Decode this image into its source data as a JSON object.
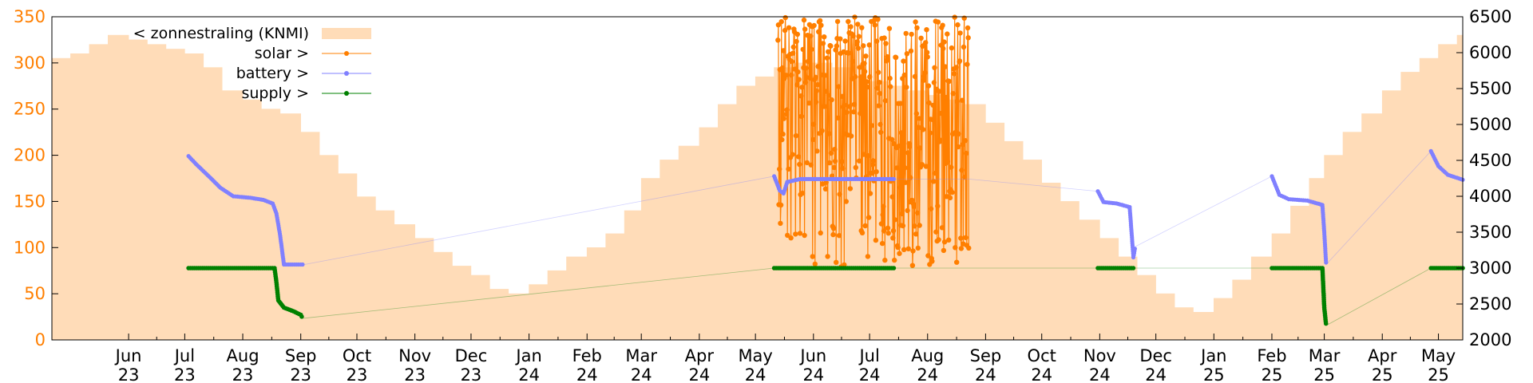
{
  "chart_data": {
    "type": "bar+scatter",
    "title": "",
    "xlabel": "",
    "ylabel_left": "",
    "ylabel_right": "",
    "grid": false,
    "legend_position": "top-left",
    "y_left": {
      "range": [
        0,
        350
      ],
      "ticks": [
        0,
        50,
        100,
        150,
        200,
        250,
        300,
        350
      ],
      "color": "#ff7f00"
    },
    "y_right": {
      "range": [
        2000,
        6500
      ],
      "ticks": [
        2000,
        2500,
        3000,
        3500,
        4000,
        4500,
        5000,
        5500,
        6000,
        6500
      ],
      "color": "#000000"
    },
    "x_range": [
      "2023-04-21",
      "2025-05-14"
    ],
    "x_ticks": [
      {
        "month": "Jun",
        "year": "23",
        "date": "2023-06-01"
      },
      {
        "month": "Jul",
        "year": "23",
        "date": "2023-07-01"
      },
      {
        "month": "Aug",
        "year": "23",
        "date": "2023-08-01"
      },
      {
        "month": "Sep",
        "year": "23",
        "date": "2023-09-01"
      },
      {
        "month": "Oct",
        "year": "23",
        "date": "2023-10-01"
      },
      {
        "month": "Nov",
        "year": "23",
        "date": "2023-11-01"
      },
      {
        "month": "Dec",
        "year": "23",
        "date": "2023-12-01"
      },
      {
        "month": "Jan",
        "year": "24",
        "date": "2024-01-01"
      },
      {
        "month": "Feb",
        "year": "24",
        "date": "2024-02-01"
      },
      {
        "month": "Mar",
        "year": "24",
        "date": "2024-03-01"
      },
      {
        "month": "Apr",
        "year": "24",
        "date": "2024-04-01"
      },
      {
        "month": "May",
        "year": "24",
        "date": "2024-05-01"
      },
      {
        "month": "Jun",
        "year": "24",
        "date": "2024-06-01"
      },
      {
        "month": "Jul",
        "year": "24",
        "date": "2024-07-01"
      },
      {
        "month": "Aug",
        "year": "24",
        "date": "2024-08-01"
      },
      {
        "month": "Sep",
        "year": "24",
        "date": "2024-09-01"
      },
      {
        "month": "Oct",
        "year": "24",
        "date": "2024-10-01"
      },
      {
        "month": "Nov",
        "year": "24",
        "date": "2024-11-01"
      },
      {
        "month": "Dec",
        "year": "24",
        "date": "2024-12-01"
      },
      {
        "month": "Jan",
        "year": "25",
        "date": "2025-01-01"
      },
      {
        "month": "Feb",
        "year": "25",
        "date": "2025-02-01"
      },
      {
        "month": "Mar",
        "year": "25",
        "date": "2025-03-01"
      },
      {
        "month": "Apr",
        "year": "25",
        "date": "2025-04-01"
      },
      {
        "month": "May",
        "year": "25",
        "date": "2025-05-01"
      }
    ],
    "series": [
      {
        "name": "< zonnestraling (KNMI)",
        "type": "bar",
        "axis": "left",
        "color": "#ffdcb8",
        "points": [
          [
            "2023-04-21",
            305
          ],
          [
            "2023-05-01",
            310
          ],
          [
            "2023-05-11",
            320
          ],
          [
            "2023-05-21",
            330
          ],
          [
            "2023-06-01",
            325
          ],
          [
            "2023-06-11",
            320
          ],
          [
            "2023-06-21",
            315
          ],
          [
            "2023-07-01",
            310
          ],
          [
            "2023-07-11",
            295
          ],
          [
            "2023-07-21",
            270
          ],
          [
            "2023-08-01",
            260
          ],
          [
            "2023-08-11",
            250
          ],
          [
            "2023-08-21",
            245
          ],
          [
            "2023-09-01",
            225
          ],
          [
            "2023-09-11",
            200
          ],
          [
            "2023-09-21",
            180
          ],
          [
            "2023-10-01",
            155
          ],
          [
            "2023-10-11",
            140
          ],
          [
            "2023-10-21",
            125
          ],
          [
            "2023-11-01",
            110
          ],
          [
            "2023-11-11",
            95
          ],
          [
            "2023-11-21",
            80
          ],
          [
            "2023-12-01",
            70
          ],
          [
            "2023-12-11",
            55
          ],
          [
            "2023-12-21",
            50
          ],
          [
            "2024-01-01",
            60
          ],
          [
            "2024-01-11",
            75
          ],
          [
            "2024-01-21",
            90
          ],
          [
            "2024-02-01",
            100
          ],
          [
            "2024-02-11",
            115
          ],
          [
            "2024-02-21",
            140
          ],
          [
            "2024-03-01",
            175
          ],
          [
            "2024-03-11",
            195
          ],
          [
            "2024-03-21",
            210
          ],
          [
            "2024-04-01",
            230
          ],
          [
            "2024-04-11",
            255
          ],
          [
            "2024-04-21",
            275
          ],
          [
            "2024-05-01",
            285
          ],
          [
            "2024-05-11",
            295
          ],
          [
            "2024-05-21",
            300
          ],
          [
            "2024-06-01",
            300
          ],
          [
            "2024-06-11",
            295
          ],
          [
            "2024-06-21",
            285
          ],
          [
            "2024-07-01",
            280
          ],
          [
            "2024-07-11",
            275
          ],
          [
            "2024-07-21",
            270
          ],
          [
            "2024-08-01",
            265
          ],
          [
            "2024-08-11",
            260
          ],
          [
            "2024-08-21",
            255
          ],
          [
            "2024-09-01",
            235
          ],
          [
            "2024-09-11",
            215
          ],
          [
            "2024-09-21",
            195
          ],
          [
            "2024-10-01",
            170
          ],
          [
            "2024-10-11",
            150
          ],
          [
            "2024-10-21",
            130
          ],
          [
            "2024-11-01",
            110
          ],
          [
            "2024-11-11",
            90
          ],
          [
            "2024-11-21",
            70
          ],
          [
            "2024-12-01",
            50
          ],
          [
            "2024-12-11",
            35
          ],
          [
            "2024-12-21",
            30
          ],
          [
            "2025-01-01",
            45
          ],
          [
            "2025-01-11",
            65
          ],
          [
            "2025-01-21",
            90
          ],
          [
            "2025-02-01",
            115
          ],
          [
            "2025-02-11",
            145
          ],
          [
            "2025-02-21",
            175
          ],
          [
            "2025-03-01",
            200
          ],
          [
            "2025-03-11",
            225
          ],
          [
            "2025-03-21",
            245
          ],
          [
            "2025-04-01",
            270
          ],
          [
            "2025-04-11",
            290
          ],
          [
            "2025-04-21",
            305
          ],
          [
            "2025-05-01",
            320
          ],
          [
            "2025-05-11",
            330
          ]
        ]
      },
      {
        "name": "solar >",
        "type": "line+points",
        "axis": "right",
        "color": "#ff7f00",
        "x_span": [
          "2024-05-13",
          "2024-08-23"
        ],
        "y_range": [
          3000,
          6500
        ],
        "points": [
          [
            "2024-05-15",
            4100
          ],
          [
            "2024-05-18",
            5200
          ],
          [
            "2024-05-21",
            3400
          ],
          [
            "2024-05-24",
            6200
          ],
          [
            "2024-05-27",
            3100
          ],
          [
            "2024-05-30",
            5800
          ],
          [
            "2024-06-02",
            3700
          ],
          [
            "2024-06-05",
            6400
          ],
          [
            "2024-06-08",
            3250
          ],
          [
            "2024-06-11",
            6000
          ],
          [
            "2024-06-14",
            3500
          ],
          [
            "2024-06-17",
            6300
          ],
          [
            "2024-06-20",
            3150
          ],
          [
            "2024-06-23",
            5600
          ],
          [
            "2024-06-26",
            3900
          ],
          [
            "2024-06-29",
            6250
          ],
          [
            "2024-07-02",
            3300
          ],
          [
            "2024-07-05",
            6100
          ],
          [
            "2024-07-08",
            3600
          ],
          [
            "2024-07-11",
            6350
          ],
          [
            "2024-07-14",
            3200
          ],
          [
            "2024-07-17",
            5900
          ],
          [
            "2024-07-20",
            3450
          ],
          [
            "2024-07-23",
            6200
          ],
          [
            "2024-07-26",
            3100
          ],
          [
            "2024-07-29",
            6000
          ],
          [
            "2024-08-01",
            3550
          ],
          [
            "2024-08-04",
            6300
          ],
          [
            "2024-08-07",
            3250
          ],
          [
            "2024-08-10",
            5700
          ],
          [
            "2024-08-13",
            3650
          ],
          [
            "2024-08-16",
            6150
          ],
          [
            "2024-08-19",
            3300
          ],
          [
            "2024-08-22",
            5900
          ]
        ]
      },
      {
        "name": "battery >",
        "type": "line+points",
        "axis": "right",
        "color": "#8080ff",
        "points": [
          [
            "2023-07-03",
            4560
          ],
          [
            "2023-07-07",
            4450
          ],
          [
            "2023-07-11",
            4350
          ],
          [
            "2023-07-15",
            4250
          ],
          [
            "2023-07-20",
            4120
          ],
          [
            "2023-07-27",
            4000
          ],
          [
            "2023-08-05",
            3980
          ],
          [
            "2023-08-12",
            3950
          ],
          [
            "2023-08-17",
            3900
          ],
          [
            "2023-08-19",
            3760
          ],
          [
            "2023-08-21",
            3450
          ],
          [
            "2023-08-23",
            3050
          ],
          [
            "2023-09-01",
            3050
          ],
          [
            "2023-09-03",
            3050
          ],
          [
            "2024-05-11",
            4280
          ],
          [
            "2024-05-14",
            4080
          ],
          [
            "2024-05-16",
            4040
          ],
          [
            "2024-05-18",
            4200
          ],
          [
            "2024-05-25",
            4240
          ],
          [
            "2024-06-15",
            4240
          ],
          [
            "2024-07-15",
            4240
          ],
          [
            "2024-08-23",
            4240
          ],
          [
            "2024-10-31",
            4070
          ],
          [
            "2024-11-03",
            3920
          ],
          [
            "2024-11-10",
            3900
          ],
          [
            "2024-11-17",
            3850
          ],
          [
            "2024-11-19",
            3150
          ],
          [
            "2024-11-20",
            3300
          ],
          [
            "2025-02-01",
            4280
          ],
          [
            "2025-02-05",
            4020
          ],
          [
            "2025-02-10",
            3960
          ],
          [
            "2025-02-20",
            3940
          ],
          [
            "2025-02-28",
            3880
          ],
          [
            "2025-03-01",
            3500
          ],
          [
            "2025-03-02",
            3050
          ],
          [
            "2025-04-27",
            4630
          ],
          [
            "2025-05-01",
            4420
          ],
          [
            "2025-05-06",
            4300
          ],
          [
            "2025-05-14",
            4230
          ]
        ]
      },
      {
        "name": "supply >",
        "type": "line+points",
        "axis": "right",
        "color": "#008000",
        "points": [
          [
            "2023-07-03",
            3000
          ],
          [
            "2023-07-20",
            3000
          ],
          [
            "2023-08-05",
            3000
          ],
          [
            "2023-08-18",
            3000
          ],
          [
            "2023-08-19",
            2800
          ],
          [
            "2023-08-20",
            2550
          ],
          [
            "2023-08-23",
            2450
          ],
          [
            "2023-08-28",
            2400
          ],
          [
            "2023-09-01",
            2350
          ],
          [
            "2023-09-02",
            2300
          ],
          [
            "2024-05-11",
            3000
          ],
          [
            "2024-06-15",
            3000
          ],
          [
            "2024-07-15",
            3000
          ],
          [
            "2024-08-23",
            3000
          ],
          [
            "2024-10-31",
            3000
          ],
          [
            "2024-11-20",
            3000
          ],
          [
            "2025-02-01",
            3000
          ],
          [
            "2025-02-28",
            3000
          ],
          [
            "2025-03-01",
            2450
          ],
          [
            "2025-03-02",
            2200
          ],
          [
            "2025-04-27",
            3000
          ],
          [
            "2025-05-14",
            3000
          ]
        ]
      }
    ]
  }
}
